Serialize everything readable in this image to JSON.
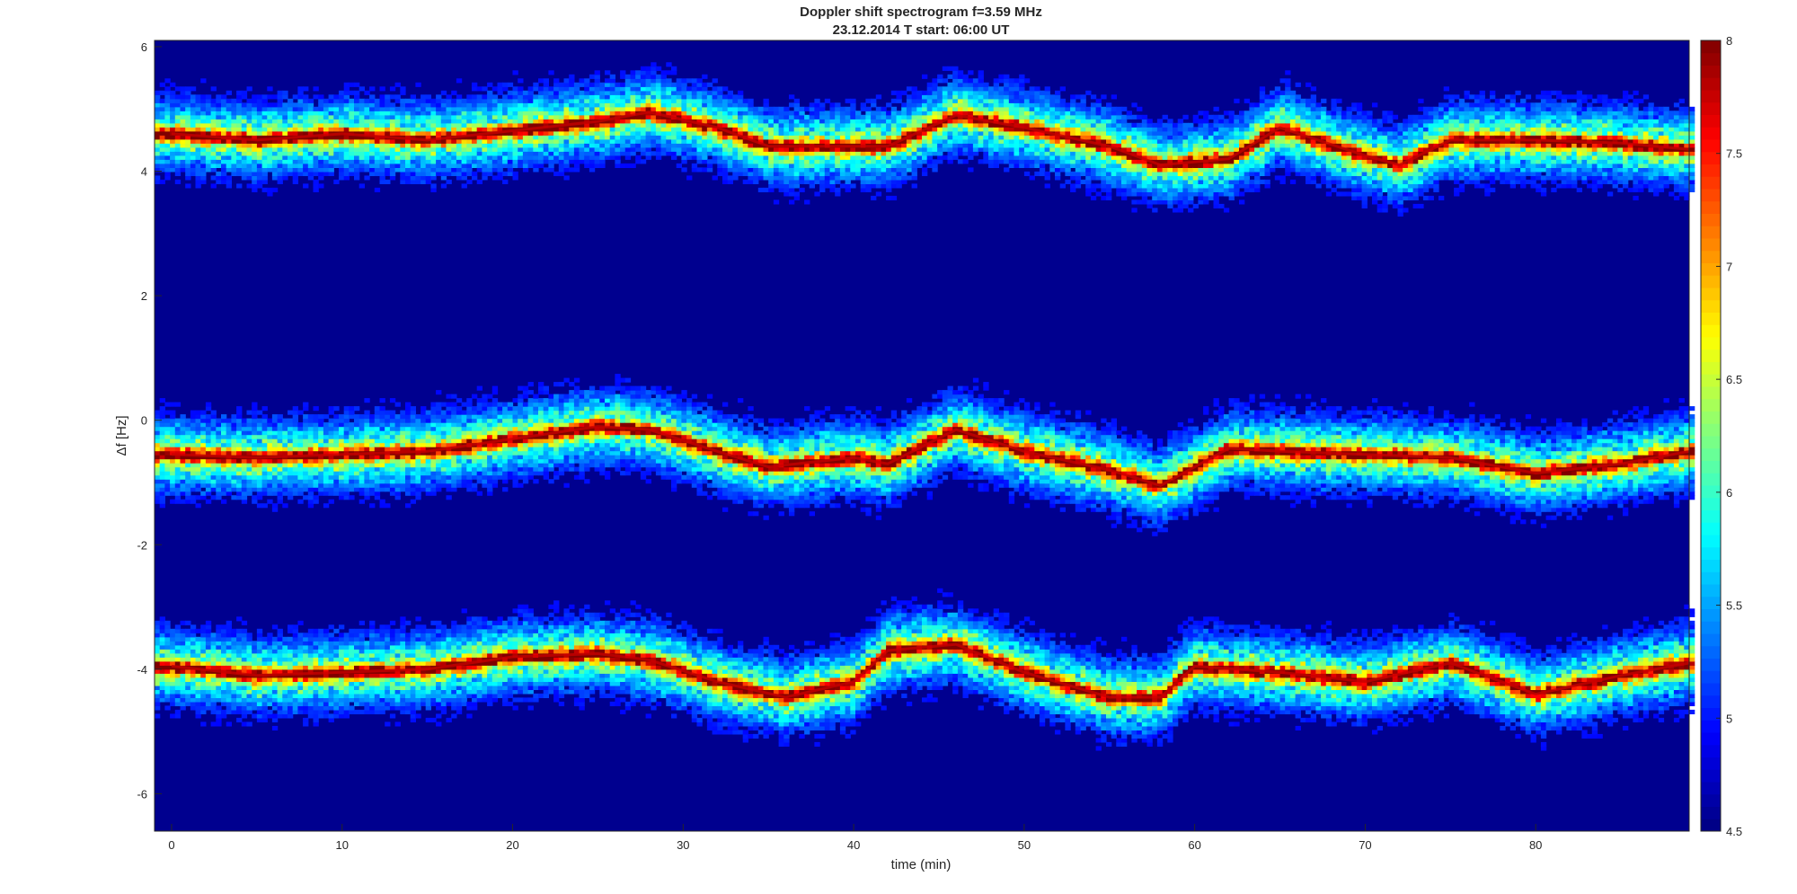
{
  "chart_data": {
    "type": "heatmap",
    "title": [
      "Doppler shift spectrogram f=3.59 MHz",
      "23.12.2014   T start: 06:00 UT"
    ],
    "xlabel": "time (min)",
    "ylabel": "Δf [Hz]",
    "xlim": [
      -1,
      89
    ],
    "ylim": [
      -6.6,
      6.1
    ],
    "x_ticks": [
      0,
      10,
      20,
      30,
      40,
      50,
      60,
      70,
      80
    ],
    "x_tick_labels": [
      "0",
      "10",
      "20",
      "30",
      "40",
      "50",
      "60",
      "70",
      "80"
    ],
    "y_ticks": [
      -6,
      -4,
      -2,
      0,
      2,
      4,
      6
    ],
    "y_tick_labels": [
      "-6",
      "-4",
      "-2",
      "0",
      "2",
      "4",
      "6"
    ],
    "colorbar": {
      "colormap": "jet",
      "clim": [
        4.5,
        8
      ],
      "ticks": [
        4.5,
        5,
        5.5,
        6,
        6.5,
        7,
        7.5,
        8
      ],
      "tick_labels": [
        "4.5",
        "5",
        "5.5",
        "6",
        "6.5",
        "7",
        "7.5",
        "8"
      ]
    },
    "grid": false,
    "series": [
      {
        "time_min": [
          0,
          5,
          10,
          15,
          20,
          25,
          28,
          32,
          35,
          40,
          42,
          46,
          50,
          55,
          58,
          62,
          65,
          70,
          72,
          75,
          80,
          85,
          89
        ],
        "doppler_hz": [
          4.6,
          4.5,
          4.6,
          4.5,
          4.65,
          4.8,
          4.95,
          4.7,
          4.4,
          4.4,
          4.4,
          4.9,
          4.7,
          4.4,
          4.1,
          4.2,
          4.7,
          4.25,
          4.1,
          4.5,
          4.5,
          4.45,
          4.35
        ]
      },
      {
        "time_min": [
          0,
          5,
          10,
          15,
          20,
          25,
          28,
          32,
          35,
          40,
          42,
          46,
          50,
          55,
          58,
          62,
          65,
          70,
          75,
          80,
          85,
          89
        ],
        "doppler_hz": [
          -0.55,
          -0.6,
          -0.55,
          -0.5,
          -0.3,
          -0.1,
          -0.15,
          -0.5,
          -0.75,
          -0.6,
          -0.7,
          -0.15,
          -0.5,
          -0.8,
          -1.05,
          -0.45,
          -0.5,
          -0.55,
          -0.6,
          -0.85,
          -0.7,
          -0.5
        ]
      },
      {
        "time_min": [
          0,
          5,
          10,
          15,
          20,
          25,
          28,
          32,
          36,
          40,
          42,
          46,
          50,
          55,
          58,
          60,
          65,
          70,
          75,
          80,
          85,
          89
        ],
        "doppler_hz": [
          -3.95,
          -4.1,
          -4.05,
          -4.0,
          -3.8,
          -3.75,
          -3.85,
          -4.2,
          -4.45,
          -4.2,
          -3.7,
          -3.6,
          -4.05,
          -4.45,
          -4.45,
          -3.95,
          -4.05,
          -4.2,
          -3.9,
          -4.4,
          -4.1,
          -3.9
        ]
      }
    ]
  }
}
